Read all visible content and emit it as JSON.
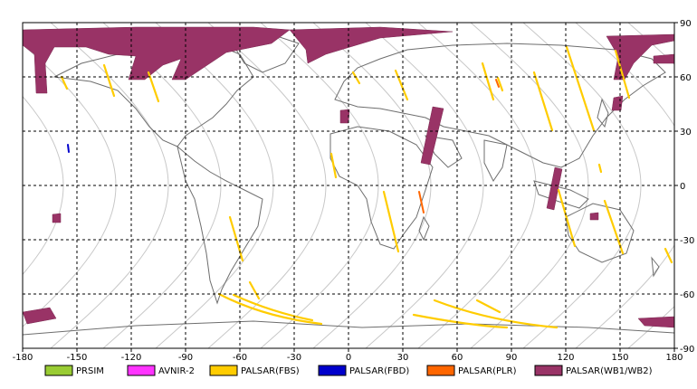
{
  "map": {
    "lon_ticks": [
      "-180",
      "-150",
      "-120",
      "-90",
      "-60",
      "-30",
      "0",
      "30",
      "60",
      "90",
      "120",
      "150",
      "180"
    ],
    "lat_ticks": [
      "90",
      "60",
      "30",
      "0",
      "-30",
      "-60",
      "-90"
    ],
    "colors": {
      "frame": "#000000",
      "grid": "#000000",
      "coast": "#6e6e6e",
      "orbit": "#c8c8c8"
    }
  },
  "legend": [
    {
      "label": "PRSIM",
      "color": "#99cc33"
    },
    {
      "label": "AVNIR-2",
      "color": "#ff33ff"
    },
    {
      "label": "PALSAR(FBS)",
      "color": "#ffcc00"
    },
    {
      "label": "PALSAR(FBD)",
      "color": "#0000cc"
    },
    {
      "label": "PALSAR(PLR)",
      "color": "#ff6600"
    },
    {
      "label": "PALSAR(WB1/WB2)",
      "color": "#993366"
    }
  ]
}
